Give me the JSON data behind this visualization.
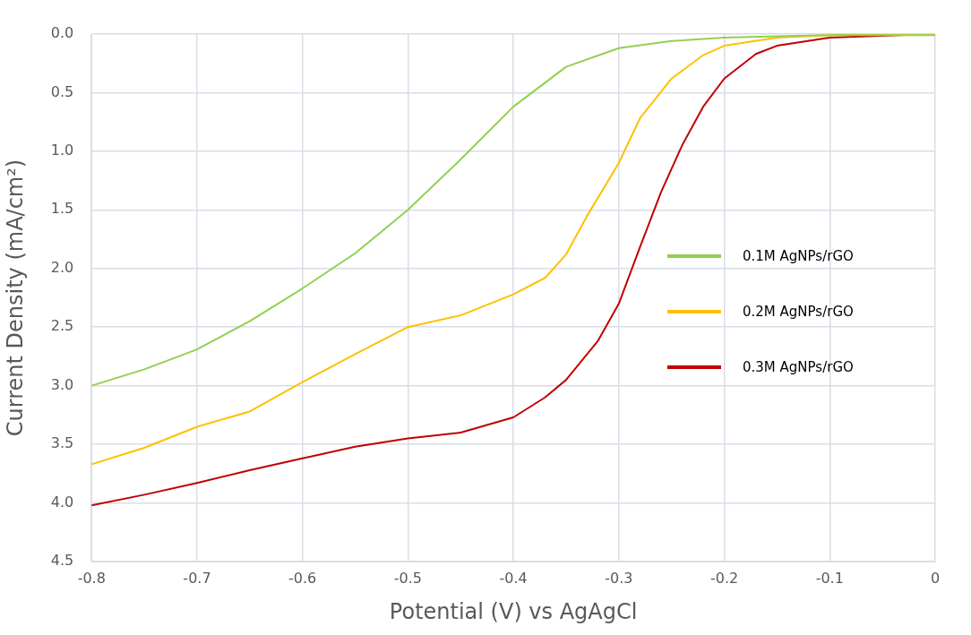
{
  "chart_data": {
    "type": "line",
    "xlabel": "Potential (V) vs AgAgCl",
    "ylabel": "Current Density (mA/cm²)",
    "xlim": [
      -0.8,
      0
    ],
    "xticks": [
      -0.8,
      -0.7,
      -0.6,
      -0.5,
      -0.4,
      -0.3,
      -0.2,
      -0.1,
      0
    ],
    "ylim": [
      4.5,
      0
    ],
    "yticks": [
      {
        "value": 0,
        "label": "0.0"
      },
      {
        "value": 0.5,
        "label": "0.5"
      },
      {
        "value": 1,
        "label": "1.0"
      },
      {
        "value": 1.5,
        "label": "1.5"
      },
      {
        "value": 2,
        "label": "2.0"
      },
      {
        "value": 2.5,
        "label": "2.5"
      },
      {
        "value": 3,
        "label": "3.0"
      },
      {
        "value": 3.5,
        "label": "3.5"
      },
      {
        "value": 4,
        "label": "4.0"
      },
      {
        "value": 4.5,
        "label": "4.5"
      }
    ],
    "grid": true,
    "legend": "right",
    "marker": "none",
    "line_style": "solid",
    "series": [
      {
        "name": "0.1M AgNPs/rGO",
        "color": "#92d050",
        "x": [
          -0.8,
          -0.75,
          -0.7,
          -0.65,
          -0.6,
          -0.55,
          -0.5,
          -0.45,
          -0.4,
          -0.35,
          -0.3,
          -0.25,
          -0.2,
          -0.15,
          -0.1,
          0
        ],
        "values": [
          3.0,
          2.86,
          2.69,
          2.45,
          2.17,
          1.87,
          1.5,
          1.07,
          0.62,
          0.28,
          0.12,
          0.06,
          0.03,
          0.02,
          0.01,
          0.01
        ]
      },
      {
        "name": "0.2M AgNPs/rGO",
        "color": "#ffc000",
        "x": [
          -0.8,
          -0.75,
          -0.7,
          -0.65,
          -0.6,
          -0.55,
          -0.5,
          -0.45,
          -0.4,
          -0.37,
          -0.35,
          -0.33,
          -0.3,
          -0.28,
          -0.25,
          -0.22,
          -0.2,
          -0.15,
          -0.1,
          0
        ],
        "values": [
          3.67,
          3.53,
          3.35,
          3.22,
          2.97,
          2.73,
          2.5,
          2.4,
          2.22,
          2.08,
          1.88,
          1.55,
          1.1,
          0.72,
          0.38,
          0.18,
          0.1,
          0.03,
          0.01,
          0
        ]
      },
      {
        "name": "0.3M AgNPs/rGO",
        "color": "#c00000",
        "x": [
          -0.8,
          -0.75,
          -0.7,
          -0.65,
          -0.6,
          -0.55,
          -0.5,
          -0.45,
          -0.4,
          -0.37,
          -0.35,
          -0.32,
          -0.3,
          -0.28,
          -0.26,
          -0.24,
          -0.22,
          -0.2,
          -0.17,
          -0.15,
          -0.1,
          0
        ],
        "values": [
          4.02,
          3.93,
          3.83,
          3.72,
          3.62,
          3.52,
          3.45,
          3.4,
          3.27,
          3.1,
          2.95,
          2.62,
          2.3,
          1.82,
          1.35,
          0.95,
          0.62,
          0.38,
          0.17,
          0.1,
          0.03,
          0
        ]
      }
    ]
  }
}
